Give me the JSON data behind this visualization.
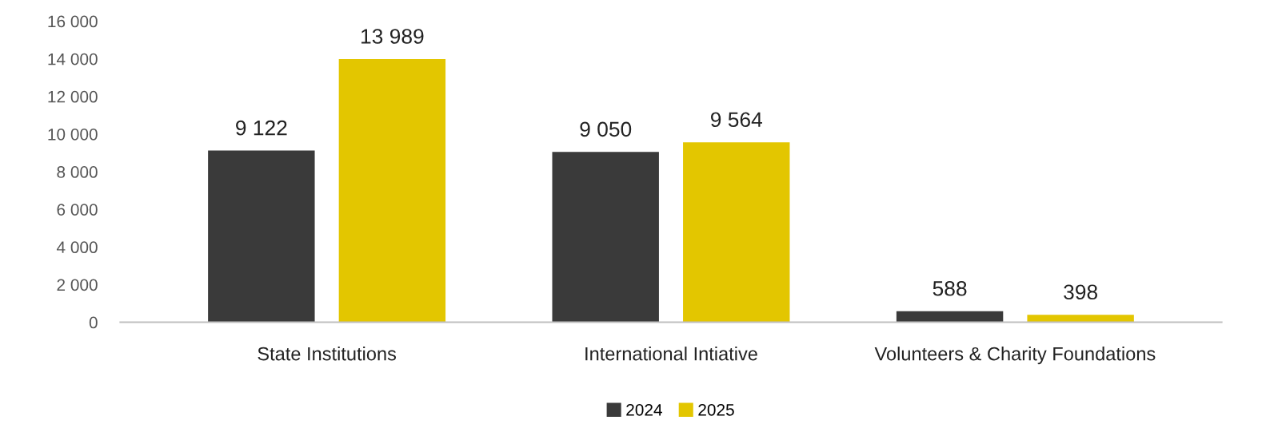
{
  "chart_data": {
    "type": "bar",
    "categories": [
      "State Institutions",
      "International Intiative",
      "Volunteers & Charity Foundations"
    ],
    "series": [
      {
        "name": "2024",
        "color": "#3a3a3a",
        "values": [
          9122,
          9050,
          588
        ],
        "value_labels": [
          "9 122",
          "9 050",
          "588"
        ]
      },
      {
        "name": "2025",
        "color": "#e3c600",
        "values": [
          13989,
          9564,
          398
        ],
        "value_labels": [
          "13 989",
          "9 564",
          "398"
        ]
      }
    ],
    "ylim": [
      0,
      16000
    ],
    "yticks": [
      {
        "value": 0,
        "label": "0"
      },
      {
        "value": 2000,
        "label": "2 000"
      },
      {
        "value": 4000,
        "label": "4 000"
      },
      {
        "value": 6000,
        "label": "6 000"
      },
      {
        "value": 8000,
        "label": "8 000"
      },
      {
        "value": 10000,
        "label": "10 000"
      },
      {
        "value": 12000,
        "label": "12 000"
      },
      {
        "value": 14000,
        "label": "14 000"
      },
      {
        "value": 16000,
        "label": "16 000"
      }
    ],
    "grid": false,
    "legend": "bottom"
  }
}
